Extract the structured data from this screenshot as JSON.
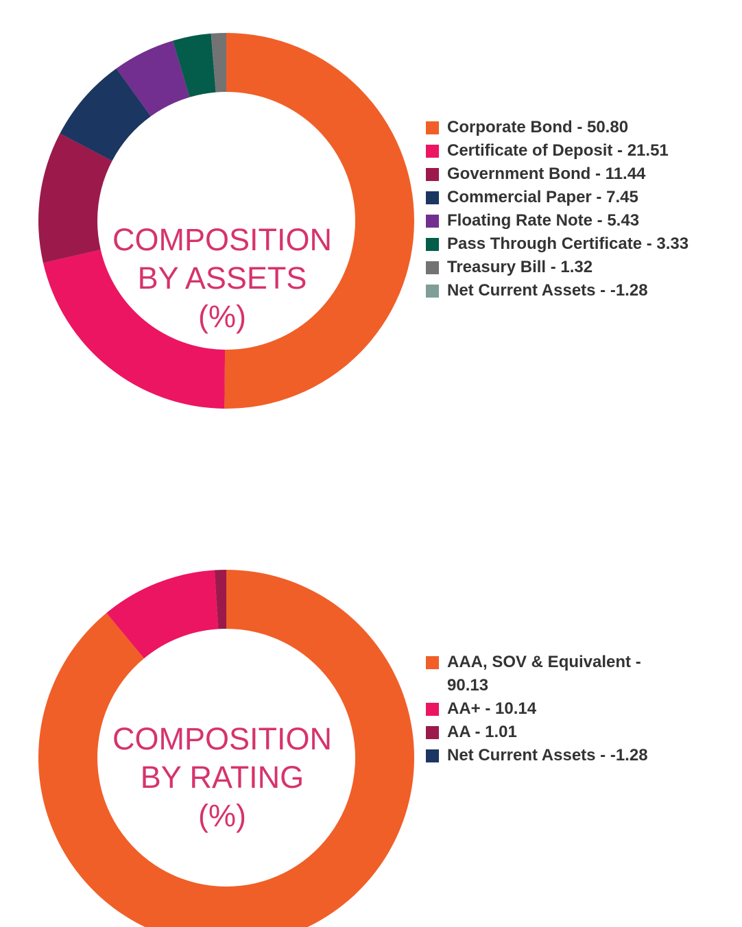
{
  "chart_data": [
    {
      "type": "pie",
      "center_title": [
        "COMPOSITION",
        "BY ASSETS",
        "(%)"
      ],
      "slices": [
        {
          "label": "Corporate Bond - 50.80",
          "value": 50.8,
          "color": "#f05f28"
        },
        {
          "label": "Certificate of Deposit - 21.51",
          "value": 21.51,
          "color": "#ec1562"
        },
        {
          "label": "Government Bond - 11.44",
          "value": 11.44,
          "color": "#9b1a4b"
        },
        {
          "label": "Commercial Paper - 7.45",
          "value": 7.45,
          "color": "#1b3660"
        },
        {
          "label": "Floating Rate Note - 5.43",
          "value": 5.43,
          "color": "#722f8f"
        },
        {
          "label": "Pass Through Certificate - 3.33",
          "value": 3.33,
          "color": "#045c4a"
        },
        {
          "label": "Treasury Bill - 1.32",
          "value": 1.32,
          "color": "#737373"
        },
        {
          "label": "Net Current Assets - -1.28",
          "value": -1.28,
          "color": "#7d9f98"
        }
      ],
      "legend_position": "right"
    },
    {
      "type": "pie",
      "center_title": [
        "COMPOSITION",
        "BY RATING",
        "(%)"
      ],
      "slices": [
        {
          "label": "AAA, SOV & Equivalent - 90.13",
          "value": 90.13,
          "color": "#f05f28"
        },
        {
          "label": "AA+ - 10.14",
          "value": 10.14,
          "color": "#ec1562"
        },
        {
          "label": "AA - 1.01",
          "value": 1.01,
          "color": "#9b1a4b"
        },
        {
          "label": "Net Current Assets - -1.28",
          "value": -1.28,
          "color": "#1b3660"
        }
      ],
      "legend_position": "right"
    }
  ]
}
